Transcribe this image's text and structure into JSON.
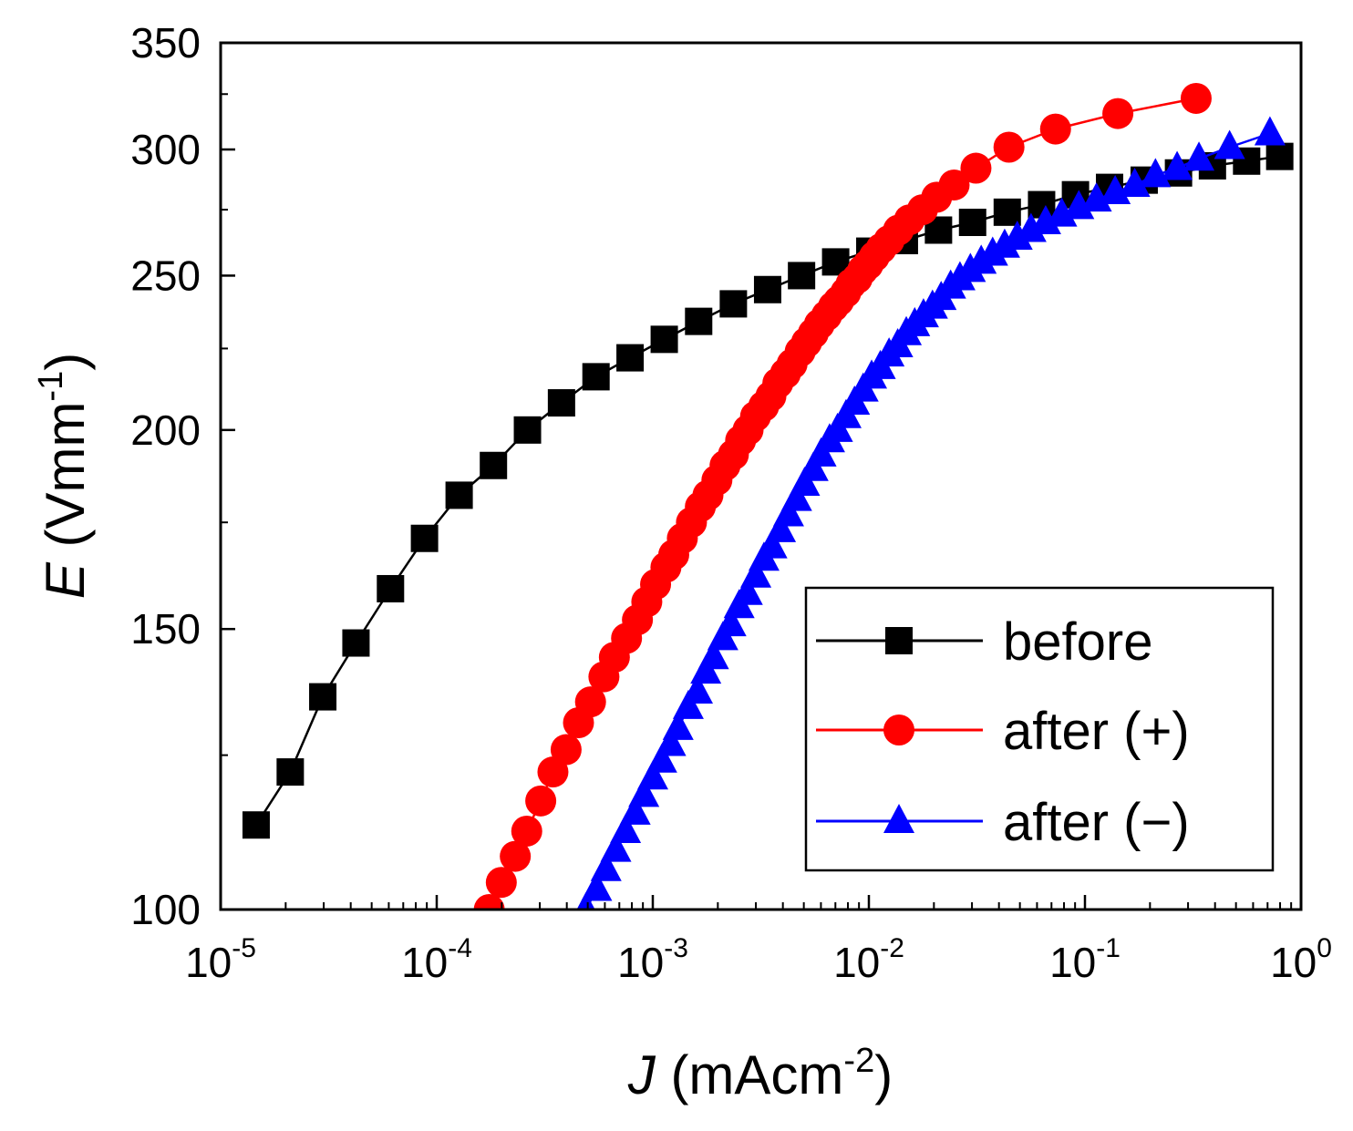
{
  "chart_data": {
    "type": "scatter",
    "scale": {
      "x": "log",
      "y": "log"
    },
    "xlabel": {
      "var": "J",
      "text": " (mAcm",
      "sup": "-2",
      "end": ")"
    },
    "ylabel": {
      "var": "E",
      "text": " (Vmm",
      "sup": "-1",
      "end": ")"
    },
    "xlim": [
      1e-05,
      1
    ],
    "ylim": [
      100,
      350
    ],
    "x_ticks": [
      {
        "value": 1e-05,
        "base": "10",
        "exp": "-5"
      },
      {
        "value": 0.0001,
        "base": "10",
        "exp": "-4"
      },
      {
        "value": 0.001,
        "base": "10",
        "exp": "-3"
      },
      {
        "value": 0.01,
        "base": "10",
        "exp": "-2"
      },
      {
        "value": 0.1,
        "base": "10",
        "exp": "-1"
      },
      {
        "value": 1,
        "base": "10",
        "exp": "0"
      }
    ],
    "y_ticks": [
      {
        "value": 100,
        "label": "100"
      },
      {
        "value": 150,
        "label": "150"
      },
      {
        "value": 200,
        "label": "200"
      },
      {
        "value": 250,
        "label": "250"
      },
      {
        "value": 300,
        "label": "300"
      },
      {
        "value": 350,
        "label": "350"
      }
    ],
    "legend_position": "bottom-right",
    "series": [
      {
        "name": "before",
        "color": "#000000",
        "marker": "square",
        "x": [
          1.46e-05,
          2.1e-05,
          2.97e-05,
          4.23e-05,
          6.11e-05,
          8.78e-05,
          0.000127,
          0.000183,
          0.000263,
          0.000378,
          0.000546,
          0.000785,
          0.00113,
          0.00163,
          0.00236,
          0.0034,
          0.00488,
          0.00702,
          0.0101,
          0.0146,
          0.021,
          0.0302,
          0.0437,
          0.063,
          0.0904,
          0.13,
          0.188,
          0.271,
          0.389,
          0.56,
          0.797
        ],
        "y": [
          113,
          122,
          136,
          147,
          159,
          171,
          182,
          190,
          200,
          208,
          216,
          222,
          228,
          234,
          240,
          245,
          250,
          255,
          259,
          263,
          267,
          270,
          274,
          277,
          281,
          284,
          287,
          290,
          293,
          295,
          297
        ]
      },
      {
        "name": "after (+)",
        "color": "#ff0000",
        "marker": "circle",
        "x": [
          0.000175,
          0.000199,
          0.000231,
          0.000261,
          0.000303,
          0.000345,
          0.000397,
          0.000453,
          0.000515,
          0.000594,
          0.000664,
          0.000756,
          0.000849,
          0.000938,
          0.00103,
          0.00115,
          0.00125,
          0.00137,
          0.00151,
          0.00166,
          0.0018,
          0.00198,
          0.00216,
          0.00236,
          0.00255,
          0.00276,
          0.00299,
          0.00326,
          0.00352,
          0.00379,
          0.00411,
          0.00441,
          0.00481,
          0.00515,
          0.00553,
          0.0059,
          0.00638,
          0.00685,
          0.00725,
          0.00782,
          0.00827,
          0.00883,
          0.00936,
          0.00991,
          0.0106,
          0.0114,
          0.0124,
          0.0137,
          0.0154,
          0.0177,
          0.0206,
          0.0248,
          0.0313,
          0.0445,
          0.0731,
          0.142,
          0.327
        ],
        "y": [
          100,
          104,
          108,
          112,
          117,
          122,
          126,
          131,
          135,
          140,
          144,
          148,
          152,
          156,
          160,
          164,
          167,
          171,
          175,
          179,
          182,
          186,
          190,
          193,
          197,
          200,
          204,
          207,
          210,
          214,
          217,
          220,
          224,
          227,
          230,
          233,
          236,
          239,
          241,
          244,
          247,
          249,
          252,
          254,
          257,
          260,
          263,
          267,
          271,
          275,
          280,
          285,
          292,
          301,
          309,
          316,
          323
        ]
      },
      {
        "name": "after (−)",
        "color": "#0000ff",
        "marker": "triangle",
        "x": [
          0.00049,
          0.00055,
          0.000608,
          0.000675,
          0.000748,
          0.000829,
          0.000909,
          0.001,
          0.0011,
          0.00121,
          0.00131,
          0.00146,
          0.00161,
          0.00176,
          0.00191,
          0.00211,
          0.0023,
          0.00251,
          0.00274,
          0.003,
          0.00327,
          0.00356,
          0.0039,
          0.00425,
          0.00463,
          0.00504,
          0.00552,
          0.00601,
          0.00658,
          0.00716,
          0.00784,
          0.00858,
          0.00941,
          0.0103,
          0.0113,
          0.0124,
          0.0136,
          0.0149,
          0.0163,
          0.0179,
          0.0197,
          0.0216,
          0.0239,
          0.0264,
          0.0295,
          0.0331,
          0.0374,
          0.0425,
          0.0486,
          0.0563,
          0.0658,
          0.0781,
          0.0937,
          0.113,
          0.138,
          0.17,
          0.212,
          0.267,
          0.337,
          0.467,
          0.718
        ],
        "y": [
          100,
          103,
          106,
          109,
          112,
          115,
          118,
          121,
          124,
          127,
          130,
          134,
          137,
          141,
          144,
          148,
          151,
          155,
          158,
          162,
          166,
          169,
          173,
          177,
          181,
          185,
          189,
          193,
          197,
          200,
          204,
          208,
          212,
          216,
          219,
          223,
          226,
          230,
          233,
          236,
          239,
          242,
          246,
          249,
          252,
          255,
          258,
          261,
          264,
          267,
          270,
          273,
          276,
          279,
          282,
          285,
          289,
          292,
          296,
          301,
          307
        ]
      }
    ]
  }
}
